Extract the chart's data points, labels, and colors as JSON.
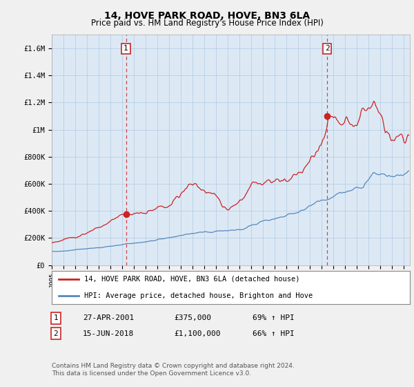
{
  "title": "14, HOVE PARK ROAD, HOVE, BN3 6LA",
  "subtitle": "Price paid vs. HM Land Registry's House Price Index (HPI)",
  "ylim": [
    0,
    1700000
  ],
  "yticks": [
    0,
    200000,
    400000,
    600000,
    800000,
    1000000,
    1200000,
    1400000,
    1600000
  ],
  "ytick_labels": [
    "£0",
    "£200K",
    "£400K",
    "£600K",
    "£800K",
    "£1M",
    "£1.2M",
    "£1.4M",
    "£1.6M"
  ],
  "background_color": "#f0f0f0",
  "plot_bg_color": "#dce9f5",
  "grid_color": "#b0c8e0",
  "title_fontsize": 10,
  "subtitle_fontsize": 8.5,
  "sale1_date": 2001.32,
  "sale1_price": 375000,
  "sale1_label": "1",
  "sale2_date": 2018.46,
  "sale2_price": 1100000,
  "sale2_label": "2",
  "red_line_color": "#cc2222",
  "blue_line_color": "#5588bb",
  "vline_color": "#cc4444",
  "legend_red_label": "14, HOVE PARK ROAD, HOVE, BN3 6LA (detached house)",
  "legend_blue_label": "HPI: Average price, detached house, Brighton and Hove",
  "footnote": "Contains HM Land Registry data © Crown copyright and database right 2024.\nThis data is licensed under the Open Government Licence v3.0.",
  "xmin": 1995,
  "xmax": 2025.5
}
